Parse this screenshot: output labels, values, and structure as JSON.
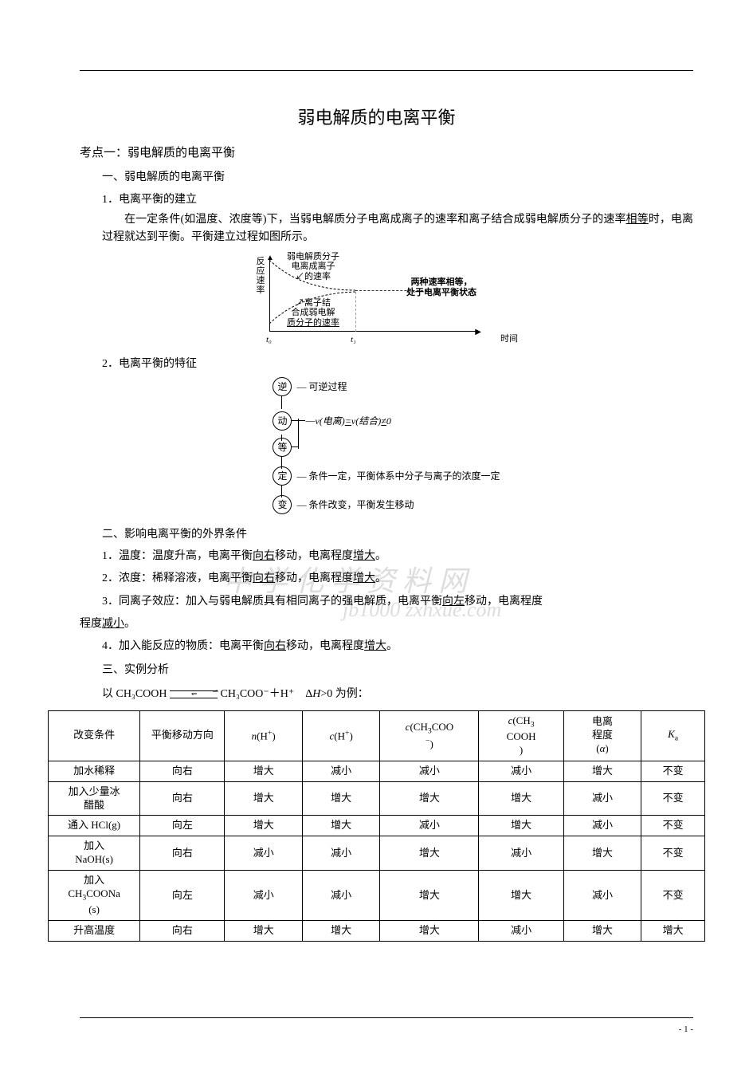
{
  "page_number": "- 1 -",
  "title": "弱电解质的电离平衡",
  "kaodian1": "考点一：弱电解质的电离平衡",
  "sec1_h": "一、弱电解质的电离平衡",
  "sec1_1": "1．电离平衡的建立",
  "sec1_1_p_a": "在一定条件(如温度、浓度等)下，当弱电解质分子电离成离子的速率和离子结合成弱电解质分子的速率",
  "sec1_1_p_u": "相等",
  "sec1_1_p_b": "时，电离过程就达到平衡。平衡建立过程如图所示。",
  "diagram1": {
    "y_label": "反应速率",
    "top_text_l1": "弱电解质分子",
    "top_text_l2": "电离成离子",
    "top_text_l3": "的速率",
    "mid_text_l1": "离子结",
    "mid_text_l2": "合成弱电解",
    "mid_text_l3": "质分子的速率",
    "right_l1": "两种速率相等，",
    "right_l2": "处于电离平衡状态",
    "t0": "t₀",
    "t1": "t₁",
    "time": "时间"
  },
  "sec1_2": "2．电离平衡的特征",
  "diagram2": {
    "ni": "逆",
    "ni_txt": "— 可逆过程",
    "dong": "动",
    "deng": "等",
    "deng_txt": "v(电离)=v(结合)≠0",
    "ding": "定",
    "ding_txt": "— 条件一定，平衡体系中分子与离子的浓度一定",
    "bian": "变",
    "bian_txt": "— 条件改变，平衡发生移动",
    "brace_txt": "— "
  },
  "sec2_h": "二、影响电离平衡的外界条件",
  "sec2_1a": "1．温度：温度升高，电离平衡",
  "sec2_1u": "向右",
  "sec2_1b": "移动，电离程度",
  "sec2_1u2": "增大",
  "sec2_1c": "。",
  "sec2_2a": "2．浓度：稀释溶液，电离平衡",
  "sec2_2u": "向右",
  "sec2_2b": "移动，电离程度",
  "sec2_2u2": "增大",
  "sec2_2c": "。",
  "sec2_3a": "3．同离子效应：加入与弱电解质具有相同离子的强电解质，电离平衡",
  "sec2_3u": "向左",
  "sec2_3b": "移动，电离程度",
  "sec2_3u2": "减小",
  "sec2_3c": "。",
  "sec2_4a": "4．加入能反应的物质：电离平衡",
  "sec2_4u": "向右",
  "sec2_4b": "移动，电离程度",
  "sec2_4u2": "增大",
  "sec2_4c": "。",
  "sec3_h": "三、实例分析",
  "eq_pre": "以 CH₃COOH",
  "eq_post": "CH₃COO⁻＋H⁺　Δ",
  "eq_post2": ">0 为例：",
  "watermark1": "中 学 化 学 资 料 网",
  "watermark2": "jb1000  zxhxue.com",
  "table": {
    "headers": [
      "改变条件",
      "平衡移动方向",
      "n(H⁺)",
      "c(H⁺)",
      "c(CH₃COO⁻)",
      "c(CH₃COOH)",
      "电离程度(α)",
      "Kₐ"
    ],
    "rows": [
      [
        "加水稀释",
        "向右",
        "增大",
        "减小",
        "减小",
        "减小",
        "增大",
        "不变"
      ],
      [
        "加入少量冰醋酸",
        "向右",
        "增大",
        "增大",
        "增大",
        "增大",
        "减小",
        "不变"
      ],
      [
        "通入 HCl(g)",
        "向左",
        "增大",
        "增大",
        "减小",
        "增大",
        "减小",
        "不变"
      ],
      [
        "加入NaOH(s)",
        "向右",
        "减小",
        "减小",
        "增大",
        "减小",
        "增大",
        "不变"
      ],
      [
        "加入CH₃COONa(s)",
        "向左",
        "减小",
        "减小",
        "增大",
        "增大",
        "减小",
        "不变"
      ],
      [
        "升高温度",
        "向右",
        "增大",
        "增大",
        "增大",
        "减小",
        "增大",
        "增大"
      ]
    ]
  },
  "col_widths": [
    "13%",
    "12%",
    "11%",
    "11%",
    "14%",
    "12%",
    "11%",
    "9%"
  ]
}
